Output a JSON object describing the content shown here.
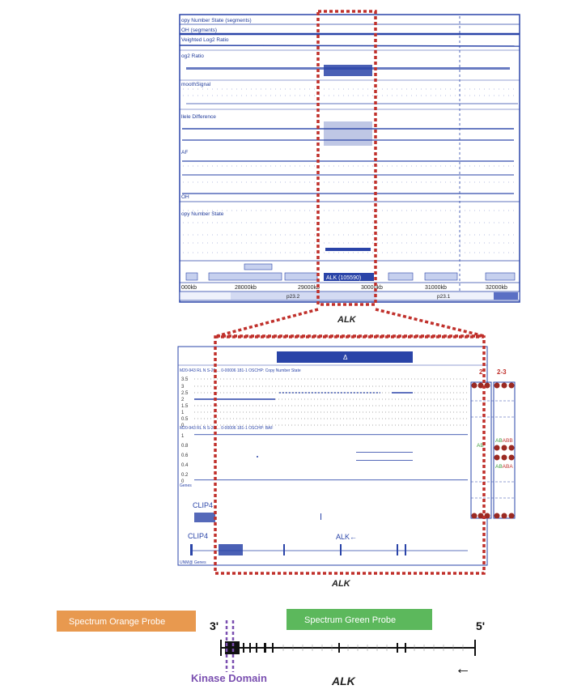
{
  "top_panel": {
    "track_labels": [
      "opy Number State (segments)",
      "OH (segments)",
      "Veighted Log2 Ratio",
      "og2 Ratio",
      "moothSignal",
      "llele Difference",
      "AF",
      "OH",
      "opy Number State"
    ],
    "gene_label": "ALK (105590)",
    "axis_ticks": [
      "000kb",
      "28000kb",
      "29000kb",
      "30000kb",
      "31000kb",
      "32000kb"
    ],
    "bands": [
      "p23.2",
      "p23.1"
    ],
    "caption": "ALK"
  },
  "middle_panel": {
    "arrow_symbol": "Δ",
    "track_title_1": "M20-943 RL N S-20 ... 0-00006 181-1 OSCHP: Copy Number State",
    "track_title_2": "M20-943 RL N S-20 ... 0-00006 181-1 OSCHP: BAF",
    "cn_ticks": [
      "3.5",
      "3",
      "2.5",
      "2",
      "1.5",
      "1",
      "0.5",
      "0"
    ],
    "baf_ticks": [
      "1",
      "0.8",
      "0.6",
      "0.4",
      "0.2",
      "0"
    ],
    "genes_label": "Genes",
    "genes_label_2": "UNM@ Genes",
    "gene_clip4_a": "CLIP4",
    "gene_clip4_b": "CLIP4",
    "gene_alk": "ALK←",
    "state_col_1": "2",
    "state_col_2": "2-3",
    "allele_labels": {
      "ab": "AB",
      "ab2": "AB",
      "abb": "ABB",
      "aab": "AB",
      "aba": "ABA"
    },
    "caption": "ALK"
  },
  "bottom_panel": {
    "orange_probe": "Spectrum Orange Probe",
    "green_probe": "Spectrum Green Probe",
    "three_prime": "3'",
    "five_prime": "5'",
    "kinase_domain": "Kinase Domain",
    "caption": "ALK",
    "arrow": "←",
    "colors": {
      "orange": "#e8994f",
      "green": "#5cb85c",
      "kinase": "#7a4fb0",
      "red_dotted": "#c0302b",
      "track_blue": "#1f3a9a"
    }
  }
}
